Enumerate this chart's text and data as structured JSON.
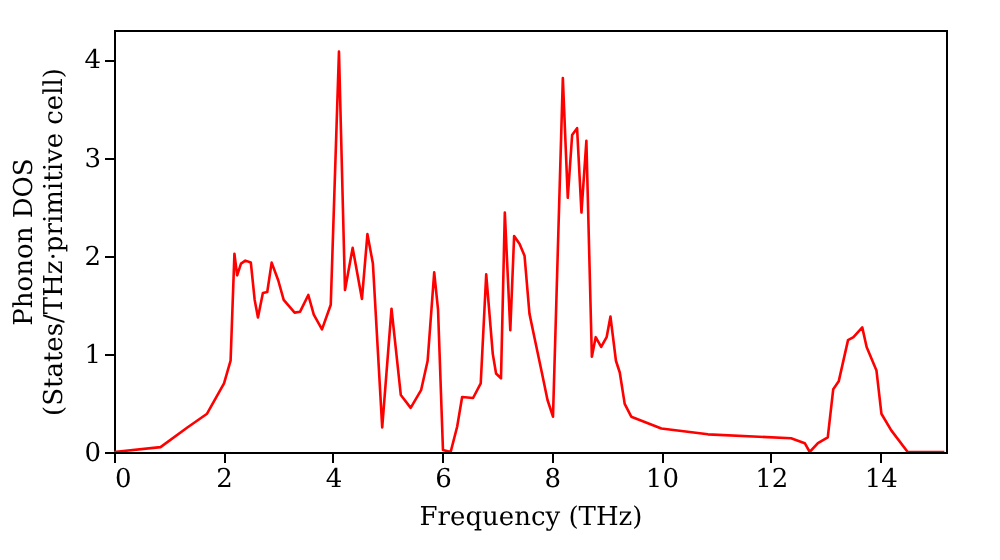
{
  "chart_data": {
    "type": "line",
    "xlabel": "Frequency (THz)",
    "ylabel": "Phonon DOS\n(States/THz·primitive cell)",
    "xlim": [
      0,
      15.2
    ],
    "ylim": [
      0,
      4.3
    ],
    "xticks": [
      0,
      2,
      4,
      6,
      8,
      10,
      12,
      14
    ],
    "yticks": [
      0,
      1,
      2,
      3,
      4
    ],
    "grid": false,
    "marker": "none",
    "line_style": "solid",
    "series": [
      {
        "color": "#ff0000",
        "x": [
          0,
          0.85,
          1.34,
          1.7,
          2.01,
          2.13,
          2.2,
          2.25,
          2.32,
          2.4,
          2.5,
          2.57,
          2.63,
          2.72,
          2.8,
          2.88,
          3.0,
          3.1,
          3.3,
          3.4,
          3.55,
          3.65,
          3.8,
          3.96,
          4.11,
          4.22,
          4.36,
          4.53,
          4.63,
          4.73,
          4.9,
          5.07,
          5.24,
          5.42,
          5.61,
          5.73,
          5.85,
          5.92,
          6.01,
          6.15,
          6.27,
          6.36,
          6.56,
          6.7,
          6.8,
          6.92,
          6.98,
          7.07,
          7.14,
          7.24,
          7.31,
          7.41,
          7.5,
          7.59,
          7.68,
          7.82,
          7.92,
          8.02,
          8.2,
          8.29,
          8.37,
          8.46,
          8.54,
          8.63,
          8.73,
          8.8,
          8.9,
          9.0,
          9.07,
          9.17,
          9.24,
          9.33,
          9.45,
          10.0,
          10.85,
          12.37,
          12.62,
          12.71,
          12.86,
          13.04,
          13.14,
          13.24,
          13.41,
          13.51,
          13.67,
          13.75,
          13.93,
          14.02,
          14.2,
          14.5,
          15.17
        ],
        "values": [
          0,
          0.05,
          0.25,
          0.39,
          0.7,
          0.93,
          2.02,
          1.8,
          1.92,
          1.95,
          1.93,
          1.55,
          1.37,
          1.62,
          1.63,
          1.93,
          1.75,
          1.55,
          1.42,
          1.43,
          1.6,
          1.4,
          1.25,
          1.5,
          4.08,
          1.65,
          2.08,
          1.56,
          2.22,
          1.92,
          0.25,
          1.46,
          0.58,
          0.45,
          0.63,
          0.93,
          1.83,
          1.45,
          0.02,
          0,
          0.26,
          0.56,
          0.55,
          0.7,
          1.81,
          1.0,
          0.8,
          0.75,
          2.44,
          1.24,
          2.2,
          2.12,
          2.0,
          1.41,
          1.17,
          0.8,
          0.53,
          0.36,
          3.81,
          2.59,
          3.23,
          3.3,
          2.44,
          3.17,
          0.97,
          1.17,
          1.07,
          1.17,
          1.38,
          0.93,
          0.81,
          0.49,
          0.36,
          0.24,
          0.18,
          0.14,
          0.09,
          0,
          0.09,
          0.15,
          0.64,
          0.72,
          1.14,
          1.17,
          1.27,
          1.07,
          0.83,
          0.39,
          0.22,
          0,
          0
        ]
      }
    ]
  }
}
